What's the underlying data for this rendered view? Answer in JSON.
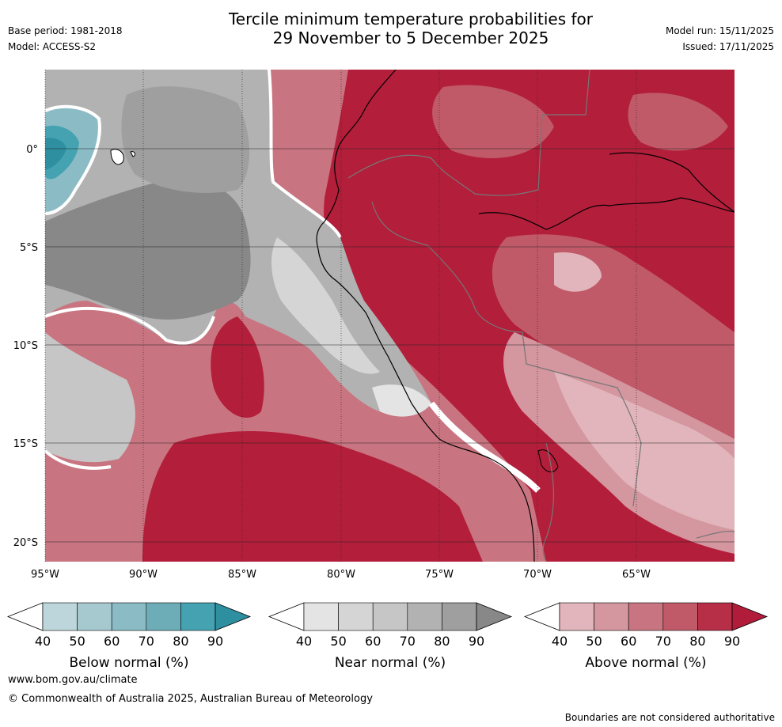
{
  "title": {
    "line1": "Tercile minimum temperature probabilities for",
    "line2": "29 November to 5 December 2025"
  },
  "meta": {
    "base_period": "Base period: 1981-2018",
    "model": "Model: ACCESS-S2",
    "model_run": "Model run: 15/11/2025",
    "issued": "Issued: 17/11/2025"
  },
  "map": {
    "lat_labels": [
      "0°",
      "5°S",
      "10°S",
      "15°S",
      "20°S"
    ],
    "lon_labels": [
      "95°W",
      "90°W",
      "85°W",
      "80°W",
      "75°W",
      "70°W",
      "65°W"
    ]
  },
  "colorbars": [
    {
      "label": "Below normal (%)",
      "ticks": [
        "40",
        "50",
        "60",
        "70",
        "80",
        "90"
      ],
      "colors": [
        "#ffffff",
        "#bdd6dc",
        "#a6c9cf",
        "#8bbcc6",
        "#6dadb8",
        "#45a2b1",
        "#2e8fa0"
      ]
    },
    {
      "label": "Near normal (%)",
      "ticks": [
        "40",
        "50",
        "60",
        "70",
        "80",
        "90"
      ],
      "colors": [
        "#ffffff",
        "#e4e4e4",
        "#d5d5d5",
        "#c6c6c6",
        "#b2b2b2",
        "#9f9f9f",
        "#888888"
      ]
    },
    {
      "label": "Above normal (%)",
      "ticks": [
        "40",
        "50",
        "60",
        "70",
        "80",
        "90"
      ],
      "colors": [
        "#ffffff",
        "#e1b5bb",
        "#d4969f",
        "#c97581",
        "#c05a68",
        "#b72e47",
        "#b01c3a"
      ]
    }
  ],
  "footer": {
    "url": "www.bom.gov.au/climate",
    "copyright": "© Commonwealth of Australia 2025, Australian Bureau of Meteorology",
    "note": "Boundaries are not considered authoritative"
  }
}
